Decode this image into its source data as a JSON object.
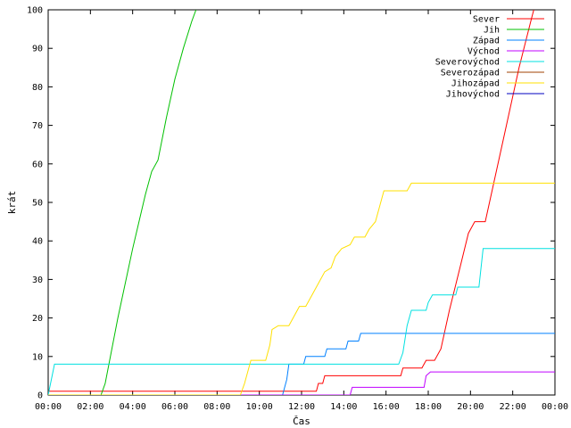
{
  "chart_data": {
    "type": "line",
    "xlabel": "Čas",
    "ylabel": "krát",
    "ylim": [
      0,
      100
    ],
    "xlim": [
      0,
      24
    ],
    "yticks": [
      0,
      10,
      20,
      30,
      40,
      50,
      60,
      70,
      80,
      90,
      100
    ],
    "xticks": [
      {
        "v": 0,
        "label": "00:00"
      },
      {
        "v": 2,
        "label": "02:00"
      },
      {
        "v": 4,
        "label": "04:00"
      },
      {
        "v": 6,
        "label": "06:00"
      },
      {
        "v": 8,
        "label": "08:00"
      },
      {
        "v": 10,
        "label": "10:00"
      },
      {
        "v": 12,
        "label": "12:00"
      },
      {
        "v": 14,
        "label": "14:00"
      },
      {
        "v": 16,
        "label": "16:00"
      },
      {
        "v": 18,
        "label": "18:00"
      },
      {
        "v": 20,
        "label": "20:00"
      },
      {
        "v": 22,
        "label": "22:00"
      },
      {
        "v": 24,
        "label": "00:00"
      }
    ],
    "grid": false,
    "legend_position": "top-right",
    "series": [
      {
        "name": "Sever",
        "color": "#ff0000",
        "points": [
          [
            0,
            1
          ],
          [
            12.7,
            1
          ],
          [
            12.8,
            3
          ],
          [
            13.0,
            3
          ],
          [
            13.1,
            5
          ],
          [
            16.7,
            5
          ],
          [
            16.8,
            7
          ],
          [
            17.7,
            7
          ],
          [
            17.9,
            9
          ],
          [
            18.3,
            9
          ],
          [
            18.6,
            12
          ],
          [
            19.0,
            22
          ],
          [
            19.5,
            33
          ],
          [
            19.9,
            42
          ],
          [
            20.2,
            45
          ],
          [
            20.7,
            45
          ],
          [
            21.1,
            55
          ],
          [
            21.7,
            70
          ],
          [
            22.3,
            85
          ],
          [
            22.9,
            98
          ],
          [
            23.0,
            100
          ]
        ]
      },
      {
        "name": "Jih",
        "color": "#00c000",
        "points": [
          [
            0,
            0
          ],
          [
            2.5,
            0
          ],
          [
            2.7,
            3
          ],
          [
            3.3,
            20
          ],
          [
            4.0,
            38
          ],
          [
            4.6,
            52
          ],
          [
            4.9,
            58
          ],
          [
            5.2,
            61
          ],
          [
            5.6,
            72
          ],
          [
            6.0,
            82
          ],
          [
            6.4,
            90
          ],
          [
            6.8,
            97
          ],
          [
            7.0,
            100
          ]
        ]
      },
      {
        "name": "Západ",
        "color": "#0080ff",
        "points": [
          [
            0,
            0
          ],
          [
            11.1,
            0
          ],
          [
            11.3,
            4
          ],
          [
            11.4,
            8
          ],
          [
            12.1,
            8
          ],
          [
            12.2,
            10
          ],
          [
            13.1,
            10
          ],
          [
            13.2,
            12
          ],
          [
            14.1,
            12
          ],
          [
            14.2,
            14
          ],
          [
            14.7,
            14
          ],
          [
            14.8,
            16
          ],
          [
            24,
            16
          ]
        ]
      },
      {
        "name": "Východ",
        "color": "#c000ff",
        "points": [
          [
            0,
            0
          ],
          [
            14.3,
            0
          ],
          [
            14.4,
            2
          ],
          [
            17.8,
            2
          ],
          [
            17.9,
            5
          ],
          [
            18.1,
            6
          ],
          [
            24,
            6
          ]
        ]
      },
      {
        "name": "Severovýchod",
        "color": "#00e0e0",
        "points": [
          [
            0,
            0
          ],
          [
            0.3,
            8
          ],
          [
            16.6,
            8
          ],
          [
            16.8,
            11
          ],
          [
            17.0,
            18
          ],
          [
            17.2,
            22
          ],
          [
            17.9,
            22
          ],
          [
            18.0,
            24
          ],
          [
            18.2,
            26
          ],
          [
            19.3,
            26
          ],
          [
            19.4,
            28
          ],
          [
            20.4,
            28
          ],
          [
            20.6,
            38
          ],
          [
            24,
            38
          ]
        ]
      },
      {
        "name": "Severozápad",
        "color": "#a04000",
        "points": []
      },
      {
        "name": "Jihozápad",
        "color": "#ffe000",
        "points": [
          [
            0,
            0
          ],
          [
            9.1,
            0
          ],
          [
            9.3,
            3
          ],
          [
            9.6,
            9
          ],
          [
            10.3,
            9
          ],
          [
            10.5,
            13
          ],
          [
            10.6,
            17
          ],
          [
            10.9,
            18
          ],
          [
            11.4,
            18
          ],
          [
            11.7,
            21
          ],
          [
            11.9,
            23
          ],
          [
            12.2,
            23
          ],
          [
            12.5,
            26
          ],
          [
            12.8,
            29
          ],
          [
            13.1,
            32
          ],
          [
            13.4,
            33
          ],
          [
            13.6,
            36
          ],
          [
            13.9,
            38
          ],
          [
            14.3,
            39
          ],
          [
            14.5,
            41
          ],
          [
            15.0,
            41
          ],
          [
            15.2,
            43
          ],
          [
            15.5,
            45
          ],
          [
            15.9,
            53
          ],
          [
            17.0,
            53
          ],
          [
            17.2,
            55
          ],
          [
            24,
            55
          ]
        ]
      },
      {
        "name": "Jihovýchod",
        "color": "#0000c0",
        "points": []
      }
    ]
  }
}
